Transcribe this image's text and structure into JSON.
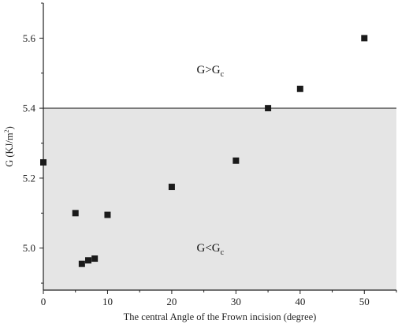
{
  "chart_data": {
    "type": "scatter",
    "title": "",
    "xlabel": "The central Angle of the Frown incision (degree)",
    "ylabel": {
      "main": "G (KJ/m",
      "sup": "2",
      "close": ")"
    },
    "xlim": [
      0,
      55
    ],
    "ylim": [
      4.88,
      5.7
    ],
    "x_ticks": [
      0,
      10,
      20,
      30,
      40,
      50
    ],
    "y_ticks": [
      5.0,
      5.2,
      5.4,
      5.6
    ],
    "y_tick_labels": [
      "5.0",
      "5.2",
      "5.4",
      "5.6"
    ],
    "threshold": 5.4,
    "shaded_region": "below threshold",
    "marker_color": "#1a1a1a",
    "shade_color": "#e5e5e5",
    "points": [
      {
        "x": 0,
        "y": 5.245
      },
      {
        "x": 5,
        "y": 5.1
      },
      {
        "x": 6,
        "y": 4.955
      },
      {
        "x": 7,
        "y": 4.965
      },
      {
        "x": 8,
        "y": 4.97
      },
      {
        "x": 10,
        "y": 5.095
      },
      {
        "x": 20,
        "y": 5.175
      },
      {
        "x": 30,
        "y": 5.25
      },
      {
        "x": 35,
        "y": 5.4
      },
      {
        "x": 40,
        "y": 5.455
      },
      {
        "x": 50,
        "y": 5.6
      }
    ],
    "annotations": [
      {
        "base": "G>G",
        "sub": "c",
        "x": 26,
        "y": 5.5
      },
      {
        "base": "G<G",
        "sub": "c",
        "x": 26,
        "y": 4.99
      }
    ]
  }
}
